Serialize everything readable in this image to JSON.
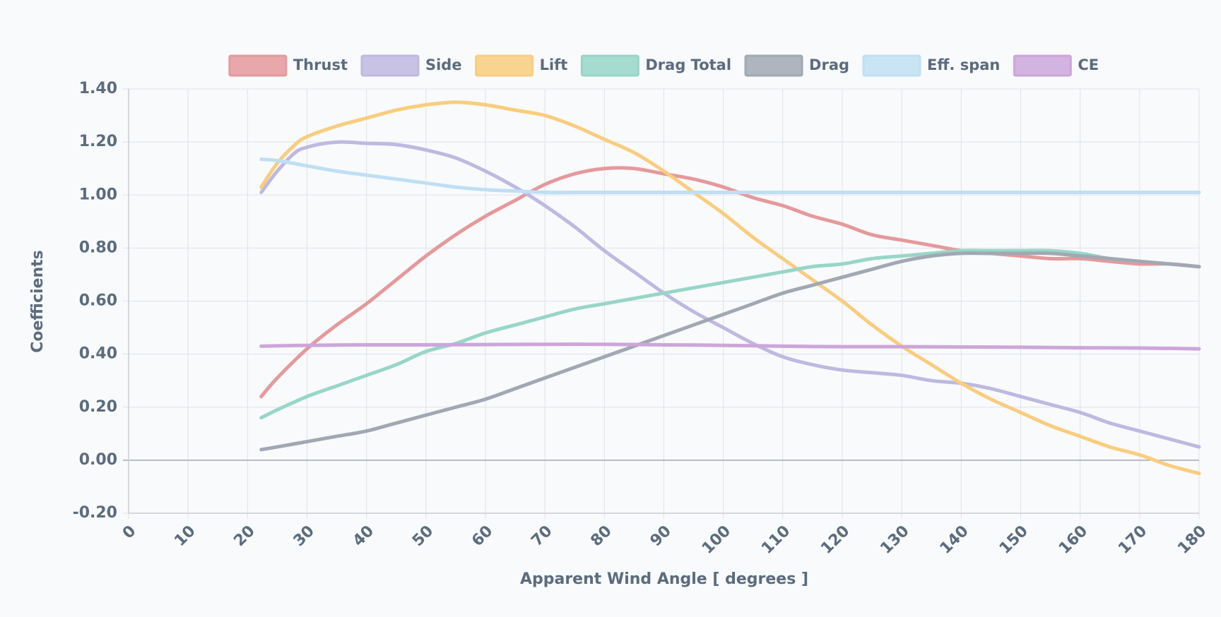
{
  "chart_data": {
    "type": "line",
    "xlabel": "Apparent Wind Angle [ degrees ]",
    "ylabel": "Coefficients",
    "xlim": [
      0,
      180
    ],
    "ylim": [
      -0.2,
      1.4
    ],
    "x_ticks": [
      "0",
      "10",
      "20",
      "30",
      "40",
      "50",
      "60",
      "70",
      "80",
      "90",
      "100",
      "110",
      "120",
      "130",
      "140",
      "150",
      "160",
      "170",
      "180"
    ],
    "y_ticks": [
      "1.40",
      "1.20",
      "1.00",
      "0.80",
      "0.60",
      "0.40",
      "0.20",
      "0.00",
      "-0.20"
    ],
    "grid": true,
    "legend_position": "top",
    "series": [
      {
        "name": "Thrust",
        "color": "#e5999c",
        "points": [
          [
            22.3,
            0.24
          ],
          [
            25,
            0.31
          ],
          [
            30,
            0.42
          ],
          [
            35,
            0.51
          ],
          [
            40,
            0.59
          ],
          [
            45,
            0.68
          ],
          [
            50,
            0.77
          ],
          [
            55,
            0.85
          ],
          [
            60,
            0.92
          ],
          [
            65,
            0.98
          ],
          [
            70,
            1.04
          ],
          [
            75,
            1.08
          ],
          [
            80,
            1.1
          ],
          [
            85,
            1.1
          ],
          [
            90,
            1.08
          ],
          [
            95,
            1.06
          ],
          [
            100,
            1.03
          ],
          [
            105,
            0.99
          ],
          [
            110,
            0.96
          ],
          [
            115,
            0.92
          ],
          [
            120,
            0.89
          ],
          [
            125,
            0.85
          ],
          [
            130,
            0.83
          ],
          [
            135,
            0.81
          ],
          [
            140,
            0.79
          ],
          [
            145,
            0.78
          ],
          [
            150,
            0.77
          ],
          [
            155,
            0.76
          ],
          [
            160,
            0.76
          ],
          [
            165,
            0.75
          ],
          [
            170,
            0.74
          ],
          [
            175,
            0.74
          ],
          [
            180,
            0.73
          ]
        ]
      },
      {
        "name": "Side",
        "color": "#bfb8e0",
        "points": [
          [
            22.3,
            1.01
          ],
          [
            25,
            1.09
          ],
          [
            28,
            1.16
          ],
          [
            30,
            1.18
          ],
          [
            33,
            1.195
          ],
          [
            36,
            1.2
          ],
          [
            40,
            1.195
          ],
          [
            45,
            1.19
          ],
          [
            50,
            1.17
          ],
          [
            55,
            1.14
          ],
          [
            60,
            1.09
          ],
          [
            65,
            1.03
          ],
          [
            70,
            0.96
          ],
          [
            75,
            0.88
          ],
          [
            80,
            0.79
          ],
          [
            85,
            0.71
          ],
          [
            90,
            0.63
          ],
          [
            95,
            0.56
          ],
          [
            100,
            0.5
          ],
          [
            105,
            0.44
          ],
          [
            110,
            0.39
          ],
          [
            115,
            0.36
          ],
          [
            120,
            0.34
          ],
          [
            125,
            0.33
          ],
          [
            130,
            0.32
          ],
          [
            135,
            0.3
          ],
          [
            140,
            0.29
          ],
          [
            145,
            0.27
          ],
          [
            150,
            0.24
          ],
          [
            155,
            0.21
          ],
          [
            160,
            0.18
          ],
          [
            165,
            0.14
          ],
          [
            170,
            0.11
          ],
          [
            175,
            0.08
          ],
          [
            180,
            0.05
          ]
        ]
      },
      {
        "name": "Lift",
        "color": "#f9cd7e",
        "points": [
          [
            22.3,
            1.03
          ],
          [
            25,
            1.12
          ],
          [
            28,
            1.19
          ],
          [
            30,
            1.22
          ],
          [
            35,
            1.26
          ],
          [
            40,
            1.29
          ],
          [
            45,
            1.32
          ],
          [
            50,
            1.34
          ],
          [
            55,
            1.35
          ],
          [
            60,
            1.34
          ],
          [
            65,
            1.32
          ],
          [
            70,
            1.3
          ],
          [
            75,
            1.26
          ],
          [
            80,
            1.21
          ],
          [
            85,
            1.16
          ],
          [
            90,
            1.09
          ],
          [
            95,
            1.01
          ],
          [
            100,
            0.93
          ],
          [
            105,
            0.84
          ],
          [
            110,
            0.76
          ],
          [
            115,
            0.68
          ],
          [
            120,
            0.6
          ],
          [
            125,
            0.51
          ],
          [
            130,
            0.43
          ],
          [
            135,
            0.36
          ],
          [
            140,
            0.29
          ],
          [
            145,
            0.23
          ],
          [
            150,
            0.18
          ],
          [
            155,
            0.13
          ],
          [
            160,
            0.09
          ],
          [
            165,
            0.05
          ],
          [
            170,
            0.02
          ],
          [
            175,
            -0.02
          ],
          [
            180,
            -0.05
          ]
        ]
      },
      {
        "name": "Drag Total",
        "color": "#98d6c7",
        "points": [
          [
            22.3,
            0.16
          ],
          [
            25,
            0.19
          ],
          [
            30,
            0.24
          ],
          [
            35,
            0.28
          ],
          [
            40,
            0.32
          ],
          [
            45,
            0.36
          ],
          [
            50,
            0.41
          ],
          [
            55,
            0.44
          ],
          [
            60,
            0.48
          ],
          [
            65,
            0.51
          ],
          [
            70,
            0.54
          ],
          [
            75,
            0.57
          ],
          [
            80,
            0.59
          ],
          [
            85,
            0.61
          ],
          [
            90,
            0.63
          ],
          [
            95,
            0.65
          ],
          [
            100,
            0.67
          ],
          [
            105,
            0.69
          ],
          [
            110,
            0.71
          ],
          [
            115,
            0.73
          ],
          [
            120,
            0.74
          ],
          [
            125,
            0.76
          ],
          [
            130,
            0.77
          ],
          [
            135,
            0.78
          ],
          [
            140,
            0.79
          ],
          [
            145,
            0.79
          ],
          [
            150,
            0.79
          ],
          [
            155,
            0.79
          ],
          [
            160,
            0.78
          ],
          [
            165,
            0.76
          ],
          [
            170,
            0.75
          ],
          [
            175,
            0.74
          ],
          [
            180,
            0.73
          ]
        ]
      },
      {
        "name": "Drag",
        "color": "#a1a8b3",
        "points": [
          [
            22.3,
            0.04
          ],
          [
            25,
            0.05
          ],
          [
            30,
            0.07
          ],
          [
            35,
            0.09
          ],
          [
            40,
            0.11
          ],
          [
            45,
            0.14
          ],
          [
            50,
            0.17
          ],
          [
            55,
            0.2
          ],
          [
            60,
            0.23
          ],
          [
            65,
            0.27
          ],
          [
            70,
            0.31
          ],
          [
            75,
            0.35
          ],
          [
            80,
            0.39
          ],
          [
            85,
            0.43
          ],
          [
            90,
            0.47
          ],
          [
            95,
            0.51
          ],
          [
            100,
            0.55
          ],
          [
            105,
            0.59
          ],
          [
            110,
            0.63
          ],
          [
            115,
            0.66
          ],
          [
            120,
            0.69
          ],
          [
            125,
            0.72
          ],
          [
            130,
            0.75
          ],
          [
            135,
            0.77
          ],
          [
            140,
            0.78
          ],
          [
            145,
            0.78
          ],
          [
            150,
            0.78
          ],
          [
            155,
            0.78
          ],
          [
            160,
            0.77
          ],
          [
            165,
            0.76
          ],
          [
            170,
            0.75
          ],
          [
            175,
            0.74
          ],
          [
            180,
            0.73
          ]
        ]
      },
      {
        "name": "Eff. span",
        "color": "#bfdff3",
        "points": [
          [
            22.3,
            1.135
          ],
          [
            25,
            1.13
          ],
          [
            30,
            1.11
          ],
          [
            35,
            1.09
          ],
          [
            40,
            1.075
          ],
          [
            45,
            1.06
          ],
          [
            50,
            1.045
          ],
          [
            55,
            1.03
          ],
          [
            60,
            1.02
          ],
          [
            65,
            1.015
          ],
          [
            70,
            1.01
          ],
          [
            75,
            1.01
          ],
          [
            80,
            1.01
          ],
          [
            90,
            1.01
          ],
          [
            100,
            1.01
          ],
          [
            120,
            1.01
          ],
          [
            140,
            1.01
          ],
          [
            160,
            1.01
          ],
          [
            180,
            1.01
          ]
        ]
      },
      {
        "name": "CE",
        "color": "#cca6d9",
        "points": [
          [
            22.3,
            0.43
          ],
          [
            30,
            0.433
          ],
          [
            40,
            0.435
          ],
          [
            50,
            0.435
          ],
          [
            60,
            0.436
          ],
          [
            70,
            0.437
          ],
          [
            80,
            0.437
          ],
          [
            90,
            0.435
          ],
          [
            100,
            0.433
          ],
          [
            110,
            0.43
          ],
          [
            120,
            0.428
          ],
          [
            130,
            0.428
          ],
          [
            140,
            0.427
          ],
          [
            150,
            0.426
          ],
          [
            160,
            0.424
          ],
          [
            170,
            0.423
          ],
          [
            180,
            0.42
          ]
        ]
      }
    ]
  }
}
